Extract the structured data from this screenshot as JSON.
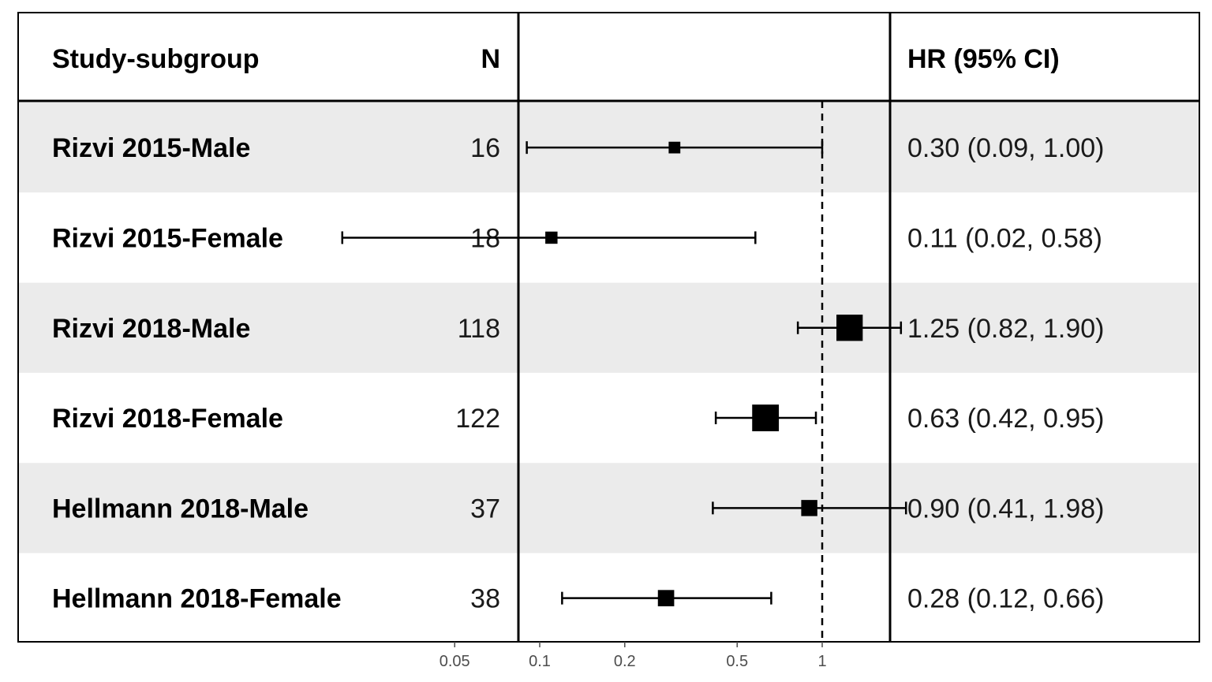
{
  "header": {
    "study_label": "Study-subgroup",
    "n_label": "N",
    "hr_label": "HR (95% CI)"
  },
  "chart_data": {
    "type": "forest",
    "x_scale": "log",
    "reference_line": 1,
    "reference_line_style": "dashed",
    "xlim": [
      0.02,
      2.1
    ],
    "x_ticks": [
      "0.05",
      "0.1",
      "0.2",
      "0.5",
      "1"
    ],
    "row_shading": "alternating light grey / white",
    "rows": [
      {
        "label": "Rizvi 2015-Male",
        "n": "16",
        "hr": 0.3,
        "lo": 0.09,
        "hi": 1.0,
        "text": "0.30 (0.09, 1.00)"
      },
      {
        "label": "Rizvi 2015-Female",
        "n": "18",
        "hr": 0.11,
        "lo": 0.02,
        "hi": 0.58,
        "text": "0.11 (0.02, 0.58)"
      },
      {
        "label": "Rizvi 2018-Male",
        "n": "118",
        "hr": 1.25,
        "lo": 0.82,
        "hi": 1.9,
        "text": "1.25 (0.82, 1.90)"
      },
      {
        "label": "Rizvi 2018-Female",
        "n": "122",
        "hr": 0.63,
        "lo": 0.42,
        "hi": 0.95,
        "text": "0.63 (0.42, 0.95)"
      },
      {
        "label": "Hellmann 2018-Male",
        "n": "37",
        "hr": 0.9,
        "lo": 0.41,
        "hi": 1.98,
        "text": "0.90 (0.41, 1.98)"
      },
      {
        "label": "Hellmann 2018-Female",
        "n": "38",
        "hr": 0.28,
        "lo": 0.12,
        "hi": 0.66,
        "text": "0.28 (0.12, 0.66)"
      }
    ]
  }
}
